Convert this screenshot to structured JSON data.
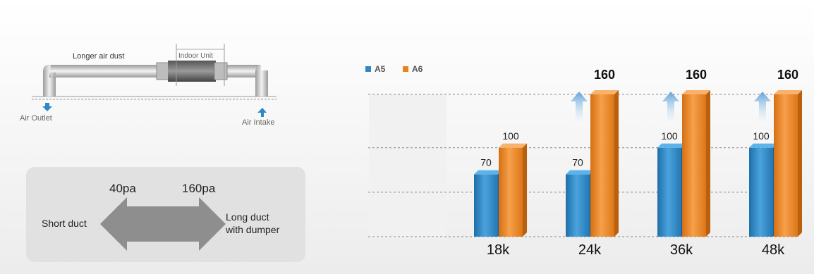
{
  "left_diagram": {
    "duct_caption": "Longer air dust",
    "indoor_unit": "Indoor Unit",
    "outlet": "Air Outlet",
    "intake": "Air Intake"
  },
  "pressure_panel": {
    "low_pa": "40pa",
    "high_pa": "160pa",
    "short_label": "Short duct",
    "long_label_line1": "Long duct",
    "long_label_line2": "with dumper"
  },
  "colors": {
    "a5": "#2f88c6",
    "a6": "#e8821f",
    "arrow": "#7fb3de"
  },
  "chart_data": {
    "type": "bar",
    "categories": [
      "18k",
      "24k",
      "36k",
      "48k"
    ],
    "series": [
      {
        "name": "A5",
        "values": [
          70,
          70,
          100,
          100
        ],
        "labels": [
          "70",
          "70",
          "100",
          "100"
        ]
      },
      {
        "name": "A6",
        "values": [
          100,
          160,
          160,
          160
        ],
        "labels": [
          "100",
          "160",
          "160",
          "160"
        ]
      }
    ],
    "ylim": [
      0,
      160
    ],
    "gridlines": [
      0,
      50,
      100,
      160
    ],
    "legend": "top-left",
    "increase_arrows": [
      false,
      true,
      true,
      true
    ]
  }
}
